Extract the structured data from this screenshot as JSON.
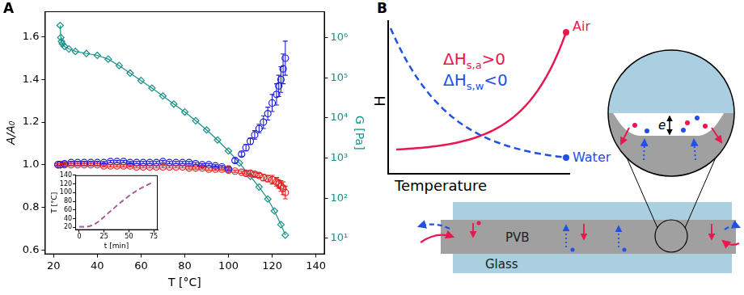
{
  "panel_labels": [
    "A",
    "B"
  ],
  "chart_data": [
    {
      "type": "scatter",
      "x_label": "T [°C]",
      "y_label": "A/A₀",
      "y2_label": "G [Pa]",
      "xlim": [
        16,
        144
      ],
      "xticks": [
        20,
        40,
        60,
        80,
        100,
        120,
        140
      ],
      "ylim": [
        0.58,
        1.72
      ],
      "yticks": [
        0.6,
        0.8,
        {
          "value": 1,
          "label": "1.0"
        },
        1.2,
        1.4,
        1.6
      ],
      "y2lim": [
        4,
        4500000
      ],
      "y2ticks": [
        {
          "value": 10,
          "label": "10¹"
        },
        {
          "value": 100,
          "label": "10²"
        },
        {
          "value": 1000,
          "label": "10³"
        },
        {
          "value": 10000,
          "label": "10⁴"
        },
        {
          "value": 100000,
          "label": "10⁵"
        },
        {
          "value": 1000000,
          "label": "10⁶"
        }
      ],
      "log": "y2",
      "grid": false,
      "series": [
        {
          "color": "#1f1fd6",
          "marker": "circle",
          "line_style": "none",
          "x": [
            22,
            23,
            25,
            28,
            31,
            34,
            37,
            40,
            43,
            46,
            49,
            52,
            55,
            58,
            61,
            64,
            67,
            70,
            73,
            76,
            79,
            82,
            85,
            88,
            91,
            94,
            97,
            100,
            103,
            106,
            108,
            110,
            112,
            114,
            116,
            118,
            120,
            122,
            123,
            124,
            125,
            126
          ],
          "values": [
            1.0,
            1.0,
            1.005,
            1.01,
            1.01,
            1.01,
            1.01,
            1.01,
            1.01,
            1.015,
            1.015,
            1.015,
            1.01,
            1.01,
            1.01,
            1.01,
            1.01,
            1.015,
            1.01,
            1.01,
            1.01,
            1.01,
            1.005,
            1.0,
            1.0,
            0.995,
            0.99,
            0.98,
            1.02,
            1.05,
            1.08,
            1.11,
            1.14,
            1.17,
            1.2,
            1.24,
            1.29,
            1.33,
            1.37,
            1.4,
            1.45,
            1.5
          ],
          "errors": [
            0.005,
            0.005,
            0.005,
            0.005,
            0.005,
            0.005,
            0.005,
            0.005,
            0.005,
            0.005,
            0.005,
            0.005,
            0.005,
            0.005,
            0.005,
            0.005,
            0.005,
            0.005,
            0.005,
            0.005,
            0.005,
            0.005,
            0.005,
            0.005,
            0.005,
            0.005,
            0.005,
            0.005,
            0.01,
            0.01,
            0.015,
            0.015,
            0.02,
            0.02,
            0.03,
            0.03,
            0.04,
            0.05,
            0.05,
            0.06,
            0.07,
            0.08
          ]
        },
        {
          "color": "#e02020",
          "marker": "circle",
          "line_style": "none",
          "x": [
            22,
            23,
            25,
            28,
            31,
            34,
            37,
            40,
            43,
            46,
            49,
            52,
            55,
            58,
            61,
            64,
            67,
            70,
            73,
            76,
            79,
            82,
            85,
            88,
            91,
            94,
            97,
            100,
            103,
            106,
            108,
            110,
            112,
            114,
            116,
            118,
            120,
            122,
            123,
            124,
            125,
            126
          ],
          "values": [
            1.0,
            1.0,
            1.0,
            1.0,
            1.0,
            1.0,
            1.0,
            1.0,
            0.995,
            0.995,
            0.995,
            0.995,
            0.995,
            0.99,
            0.99,
            0.99,
            0.99,
            0.99,
            0.99,
            0.99,
            0.99,
            0.985,
            0.985,
            0.985,
            0.98,
            0.98,
            0.98,
            0.975,
            0.97,
            0.965,
            0.96,
            0.96,
            0.955,
            0.95,
            0.94,
            0.935,
            0.93,
            0.92,
            0.91,
            0.9,
            0.89,
            0.87
          ],
          "errors": [
            0.005,
            0.005,
            0.005,
            0.005,
            0.005,
            0.005,
            0.005,
            0.005,
            0.005,
            0.005,
            0.005,
            0.005,
            0.005,
            0.005,
            0.005,
            0.005,
            0.005,
            0.005,
            0.005,
            0.005,
            0.005,
            0.005,
            0.005,
            0.005,
            0.005,
            0.005,
            0.005,
            0.005,
            0.005,
            0.005,
            0.01,
            0.01,
            0.01,
            0.01,
            0.015,
            0.015,
            0.02,
            0.02,
            0.02,
            0.025,
            0.03,
            0.03
          ]
        },
        {
          "color": "#178f88",
          "marker": "diamond",
          "line_style": "solid",
          "axis": "y2",
          "x": [
            23,
            23.3,
            23.6,
            24,
            25,
            27,
            30,
            35,
            40,
            45,
            50,
            55,
            60,
            65,
            70,
            75,
            80,
            85,
            90,
            95,
            100,
            105,
            110,
            114,
            118,
            121,
            124,
            126
          ],
          "values": [
            2000000,
            1000000,
            800000,
            700000,
            600000,
            520000,
            450000,
            400000,
            360000,
            290000,
            200000,
            130000,
            85000,
            55000,
            35000,
            22000,
            14000,
            8500,
            5000,
            2800,
            1500,
            750,
            350,
            190,
            95,
            48,
            22,
            12
          ]
        }
      ]
    },
    {
      "type": "line",
      "x_label": "t [min]",
      "y_label": "T [°C]",
      "xlim": [
        -4,
        79
      ],
      "xticks": [
        0,
        25,
        50,
        75
      ],
      "ylim": [
        14,
        140
      ],
      "yticks": [
        20,
        40,
        60,
        80,
        100,
        120,
        140
      ],
      "grid": false,
      "x": [
        0,
        5,
        10,
        15,
        20,
        25,
        30,
        35,
        40,
        45,
        50,
        55,
        60,
        65,
        70,
        75
      ],
      "series": [
        {
          "color": "#9467bd",
          "line_style": "dashed",
          "values": [
            22,
            22,
            23,
            27,
            35,
            45,
            55,
            65,
            75,
            84,
            93,
            101,
            108,
            114,
            120,
            125
          ]
        },
        {
          "color": "#d62728",
          "line_style": "dashed",
          "values": [
            21,
            21,
            22,
            26,
            34,
            44,
            54,
            64,
            74,
            83,
            92,
            100,
            107,
            113,
            119,
            124
          ]
        }
      ]
    }
  ],
  "diagram": {
    "y_label": "H",
    "x_label": "Temperature",
    "curves": [
      {
        "label": "Air",
        "color": "#e8174f",
        "line_style": "solid"
      },
      {
        "label": "Water",
        "color": "#2050e8",
        "line_style": "dashed"
      }
    ],
    "equations": [
      {
        "text": "ΔH",
        "sub": "s,a",
        "rest": ">0",
        "color": "#e8174f"
      },
      {
        "text": "ΔH",
        "sub": "s,w",
        "rest": "<0",
        "color": "#2050e8"
      }
    ],
    "zoom_label": "e",
    "layers": {
      "interlayer": "PVB",
      "pane": "Glass"
    }
  }
}
